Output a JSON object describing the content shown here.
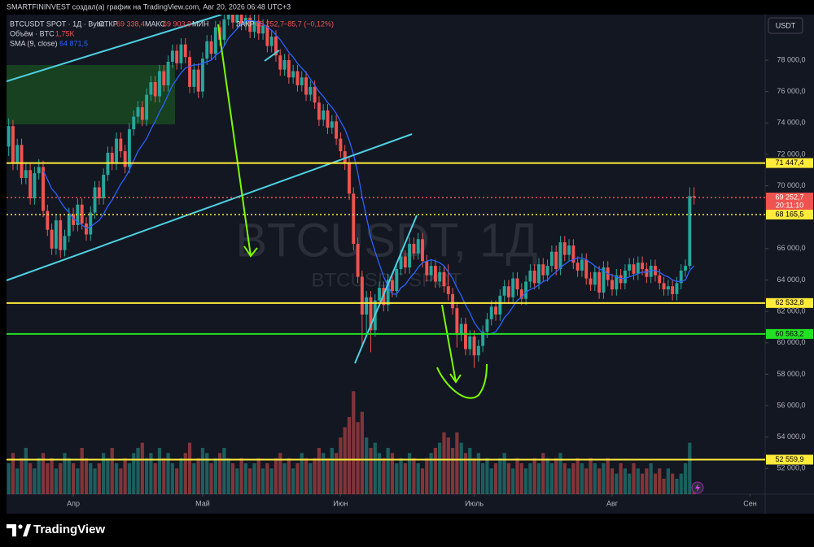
{
  "header": {
    "author_line": "SMARTFININVEST создал(а) график на TradingView.com, Авг 20, 2026 06:48 UTC+3",
    "currency_button": "USDT"
  },
  "chart_data": {
    "type": "candlestick",
    "symbol_line": "BTCUSDT SPOT · 1Д · Bybit",
    "watermark": "BTCUSDT, 1Д",
    "watermark_sub": "BTCUSDT SPOT",
    "legend": {
      "open_name": "ОТКР",
      "open": "69 338,4",
      "high_name": "МАКС",
      "high": "69 903,9",
      "low_name": "МИН",
      "close_name": "ЗАКР",
      "close": "69 252,7",
      "change": "−85,7 (−0,12%)"
    },
    "up_color": "#26a69a",
    "down_color": "#ef5350",
    "ohlc": [
      [
        72500,
        74300,
        71900,
        73800
      ],
      [
        73800,
        74200,
        71000,
        71400
      ],
      [
        71400,
        73000,
        71000,
        72600
      ],
      [
        72600,
        73000,
        70100,
        70500
      ],
      [
        70500,
        71500,
        70100,
        71000
      ],
      [
        71000,
        71400,
        68800,
        69200
      ],
      [
        69200,
        71200,
        68800,
        70800
      ],
      [
        70800,
        71700,
        70400,
        71200
      ],
      [
        71200,
        71600,
        68000,
        68400
      ],
      [
        68400,
        68800,
        66800,
        67200
      ],
      [
        67200,
        67600,
        65600,
        66000
      ],
      [
        66000,
        68200,
        65600,
        67800
      ],
      [
        67800,
        68200,
        65400,
        65900
      ],
      [
        65900,
        67200,
        65500,
        66800
      ],
      [
        66800,
        68600,
        66400,
        68200
      ],
      [
        68200,
        68600,
        67100,
        67500
      ],
      [
        67500,
        69200,
        67100,
        68800
      ],
      [
        68800,
        69200,
        67200,
        67600
      ],
      [
        67600,
        68000,
        66500,
        66900
      ],
      [
        66900,
        68700,
        66500,
        68300
      ],
      [
        68300,
        70300,
        67900,
        69900
      ],
      [
        69900,
        70300,
        68800,
        69200
      ],
      [
        69200,
        71100,
        68800,
        70700
      ],
      [
        70700,
        72500,
        70300,
        72100
      ],
      [
        72100,
        72500,
        71000,
        71400
      ],
      [
        71400,
        73400,
        71000,
        73000
      ],
      [
        73000,
        73400,
        71800,
        72200
      ],
      [
        72200,
        72600,
        70800,
        71200
      ],
      [
        71200,
        74000,
        70800,
        73600
      ],
      [
        73600,
        74800,
        73200,
        74400
      ],
      [
        74400,
        75400,
        74000,
        75000
      ],
      [
        75000,
        75400,
        73800,
        74200
      ],
      [
        74200,
        76200,
        73800,
        75800
      ],
      [
        75800,
        77000,
        75400,
        76600
      ],
      [
        76600,
        77000,
        75300,
        75700
      ],
      [
        75700,
        77700,
        75300,
        77300
      ],
      [
        77300,
        77700,
        76000,
        76400
      ],
      [
        76400,
        78300,
        76000,
        77900
      ],
      [
        77900,
        79000,
        77500,
        78600
      ],
      [
        78600,
        79000,
        77400,
        77800
      ],
      [
        77800,
        79400,
        77400,
        79000
      ],
      [
        79000,
        79400,
        77800,
        78200
      ],
      [
        78200,
        78600,
        75900,
        76300
      ],
      [
        76300,
        77800,
        75900,
        77400
      ],
      [
        77400,
        77800,
        75600,
        76000
      ],
      [
        76000,
        78500,
        75600,
        78100
      ],
      [
        78100,
        79600,
        77700,
        79200
      ],
      [
        79200,
        79600,
        78000,
        78400
      ],
      [
        78400,
        80500,
        78000,
        80100
      ],
      [
        80100,
        80500,
        78900,
        79300
      ],
      [
        79300,
        81000,
        78900,
        80600
      ],
      [
        80600,
        81600,
        80200,
        81200
      ],
      [
        81200,
        81600,
        80000,
        80400
      ],
      [
        80400,
        81400,
        80000,
        81000
      ],
      [
        81000,
        81400,
        79900,
        80300
      ],
      [
        80300,
        81100,
        79900,
        80700
      ],
      [
        80700,
        81100,
        79400,
        79800
      ],
      [
        79800,
        80900,
        79400,
        80500
      ],
      [
        80500,
        80900,
        79300,
        79700
      ],
      [
        79700,
        80600,
        79300,
        80200
      ],
      [
        80200,
        80600,
        78500,
        78900
      ],
      [
        78900,
        79900,
        78500,
        79500
      ],
      [
        79500,
        79900,
        77900,
        78300
      ],
      [
        78300,
        78700,
        77000,
        77400
      ],
      [
        77400,
        78400,
        77000,
        78000
      ],
      [
        78000,
        78400,
        76500,
        76900
      ],
      [
        76900,
        77700,
        76500,
        77300
      ],
      [
        77300,
        77700,
        76000,
        76400
      ],
      [
        76400,
        77300,
        76000,
        76900
      ],
      [
        76900,
        77300,
        75400,
        75800
      ],
      [
        75800,
        76700,
        75400,
        76300
      ],
      [
        76300,
        76700,
        74900,
        75300
      ],
      [
        75300,
        75700,
        73800,
        74200
      ],
      [
        74200,
        75200,
        73800,
        74800
      ],
      [
        74800,
        75200,
        73300,
        73700
      ],
      [
        73700,
        74500,
        73300,
        74100
      ],
      [
        74100,
        74500,
        72600,
        73000
      ],
      [
        73000,
        73400,
        71800,
        72200
      ],
      [
        72200,
        72600,
        71000,
        71400
      ],
      [
        71400,
        71800,
        69100,
        69500
      ],
      [
        69500,
        69900,
        65900,
        66300
      ],
      [
        66300,
        66700,
        63800,
        64200
      ],
      [
        64200,
        64600,
        59800,
        61800
      ],
      [
        61800,
        63300,
        60400,
        62900
      ],
      [
        62900,
        63300,
        59400,
        60800
      ],
      [
        60800,
        63100,
        60400,
        62700
      ],
      [
        62700,
        63900,
        62300,
        63500
      ],
      [
        63500,
        63900,
        62000,
        62400
      ],
      [
        62400,
        64400,
        62000,
        64000
      ],
      [
        64000,
        64400,
        62900,
        63300
      ],
      [
        63300,
        65100,
        62900,
        64700
      ],
      [
        64700,
        65900,
        64300,
        65500
      ],
      [
        65500,
        65900,
        64400,
        64800
      ],
      [
        64800,
        66700,
        64400,
        66300
      ],
      [
        66300,
        66700,
        65300,
        65700
      ],
      [
        65700,
        67000,
        65300,
        66600
      ],
      [
        66600,
        67000,
        64800,
        65200
      ],
      [
        65200,
        65600,
        63900,
        64300
      ],
      [
        64300,
        65300,
        63900,
        64900
      ],
      [
        64900,
        65300,
        63500,
        63900
      ],
      [
        63900,
        64900,
        63500,
        64500
      ],
      [
        64500,
        64900,
        63200,
        63600
      ],
      [
        63600,
        65000,
        62700,
        63100
      ],
      [
        63100,
        63500,
        61800,
        62200
      ],
      [
        62200,
        62600,
        59700,
        60500
      ],
      [
        60500,
        61600,
        60100,
        61200
      ],
      [
        61200,
        61600,
        59200,
        59600
      ],
      [
        59600,
        60800,
        59200,
        60400
      ],
      [
        60400,
        60800,
        58400,
        59200
      ],
      [
        59200,
        60200,
        58800,
        59800
      ],
      [
        59800,
        61100,
        59400,
        60700
      ],
      [
        60700,
        61900,
        60300,
        61500
      ],
      [
        61500,
        62700,
        61100,
        62300
      ],
      [
        62300,
        62700,
        61400,
        61800
      ],
      [
        61800,
        63400,
        61400,
        63000
      ],
      [
        63000,
        64000,
        62600,
        63600
      ],
      [
        63600,
        64000,
        62500,
        62900
      ],
      [
        62900,
        64500,
        62500,
        64100
      ],
      [
        64100,
        64500,
        63000,
        63400
      ],
      [
        63400,
        63800,
        62400,
        62800
      ],
      [
        62800,
        64300,
        62400,
        63900
      ],
      [
        63900,
        65000,
        63500,
        64600
      ],
      [
        64600,
        65000,
        63400,
        63800
      ],
      [
        63800,
        65400,
        63400,
        65000
      ],
      [
        65000,
        65400,
        63900,
        64300
      ],
      [
        64300,
        65300,
        63900,
        64900
      ],
      [
        64900,
        66200,
        64500,
        65800
      ],
      [
        65800,
        66200,
        64300,
        64700
      ],
      [
        64700,
        66800,
        64300,
        66400
      ],
      [
        66400,
        66800,
        65200,
        65600
      ],
      [
        65600,
        66600,
        65200,
        66200
      ],
      [
        66200,
        66600,
        64700,
        65100
      ],
      [
        65100,
        65500,
        64200,
        64600
      ],
      [
        64600,
        65700,
        64200,
        65300
      ],
      [
        65300,
        65700,
        63700,
        64100
      ],
      [
        64100,
        64500,
        63300,
        63700
      ],
      [
        63700,
        64900,
        63300,
        64500
      ],
      [
        64500,
        64900,
        62800,
        63200
      ],
      [
        63200,
        65200,
        62800,
        64800
      ],
      [
        64800,
        65200,
        63600,
        64000
      ],
      [
        64000,
        64400,
        63000,
        63400
      ],
      [
        63400,
        64700,
        63000,
        64300
      ],
      [
        64300,
        64700,
        63400,
        63800
      ],
      [
        63800,
        65000,
        63400,
        64600
      ],
      [
        64600,
        65400,
        64200,
        65000
      ],
      [
        65000,
        65400,
        64000,
        64400
      ],
      [
        64400,
        65500,
        64000,
        65100
      ],
      [
        65100,
        65500,
        64300,
        64700
      ],
      [
        64700,
        65100,
        63800,
        64200
      ],
      [
        64200,
        65300,
        63800,
        64900
      ],
      [
        64900,
        65300,
        63900,
        64300
      ],
      [
        64300,
        64700,
        63400,
        63800
      ],
      [
        63800,
        64200,
        63000,
        63400
      ],
      [
        63400,
        64000,
        63000,
        63600
      ],
      [
        63600,
        64000,
        62700,
        63100
      ],
      [
        63100,
        64200,
        62700,
        63800
      ],
      [
        63800,
        65000,
        63400,
        64600
      ],
      [
        64600,
        65300,
        64200,
        64900
      ],
      [
        64900,
        69900,
        64700,
        69338.4
      ],
      [
        69338.4,
        69903.9,
        68800,
        69252.7
      ]
    ],
    "volume": {
      "name": "Объём · BTC",
      "last": "1,75K",
      "vlim": [
        0,
        30
      ],
      "values": [
        6,
        8,
        5,
        7,
        9,
        6,
        5,
        7,
        8,
        6,
        7,
        5,
        6,
        8,
        7,
        6,
        5,
        9,
        7,
        6,
        5,
        6,
        8,
        7,
        9,
        6,
        5,
        7,
        6,
        8,
        9,
        10,
        7,
        8,
        6,
        9,
        7,
        8,
        6,
        5,
        7,
        8,
        10,
        6,
        7,
        9,
        8,
        6,
        7,
        8,
        9,
        7,
        6,
        5,
        7,
        6,
        5,
        6,
        7,
        5,
        6,
        5,
        7,
        8,
        6,
        7,
        5,
        6,
        8,
        7,
        6,
        7,
        9,
        8,
        7,
        9,
        8,
        11,
        13,
        15,
        20,
        14,
        16,
        11,
        9,
        10,
        8,
        7,
        9,
        8,
        6,
        7,
        6,
        8,
        7,
        6,
        5,
        7,
        8,
        9,
        10,
        12,
        11,
        9,
        12,
        10,
        8,
        9,
        7,
        8,
        6,
        7,
        5,
        6,
        7,
        8,
        6,
        5,
        7,
        6,
        5,
        6,
        7,
        6,
        8,
        7,
        6,
        7,
        8,
        6,
        5,
        6,
        7,
        6,
        5,
        7,
        6,
        5,
        6,
        7,
        5,
        4,
        6,
        5,
        4,
        6,
        5,
        4,
        5,
        6,
        4,
        5,
        3,
        5,
        4,
        3,
        4,
        6,
        10,
        2
      ]
    },
    "sma": {
      "name": "SMA (9, close)",
      "last": "64 871,5",
      "color": "#2962ff",
      "values": [
        null,
        null,
        null,
        null,
        null,
        null,
        null,
        null,
        70990,
        70400,
        69800,
        69500,
        69000,
        68600,
        68300,
        67900,
        67700,
        67500,
        67300,
        67400,
        67600,
        67800,
        68200,
        68700,
        69100,
        69600,
        70100,
        70500,
        71000,
        71600,
        72200,
        72600,
        73000,
        73600,
        74100,
        74700,
        75200,
        75800,
        76400,
        76800,
        77200,
        77500,
        77600,
        77700,
        77700,
        77800,
        77900,
        78000,
        78300,
        78500,
        78900,
        79400,
        79700,
        80000,
        80300,
        80500,
        80500,
        80500,
        80400,
        80300,
        80100,
        79900,
        79600,
        79300,
        78900,
        78500,
        78200,
        77800,
        77500,
        77200,
        76800,
        76400,
        76000,
        75700,
        75300,
        75000,
        74600,
        74100,
        73600,
        72900,
        72000,
        70800,
        69300,
        68000,
        66700,
        65800,
        65000,
        64200,
        63600,
        63100,
        63100,
        63500,
        63700,
        64100,
        64400,
        64800,
        65100,
        65200,
        65300,
        65200,
        65100,
        64900,
        64500,
        64100,
        63500,
        63000,
        62400,
        61900,
        61300,
        60900,
        60600,
        60500,
        60600,
        60700,
        61100,
        61600,
        61900,
        62300,
        62700,
        62900,
        63200,
        63400,
        63500,
        63700,
        63900,
        64000,
        64300,
        64500,
        64800,
        65000,
        65200,
        65300,
        65400,
        65400,
        65300,
        65100,
        64900,
        64700,
        64600,
        64400,
        64300,
        64200,
        64100,
        64100,
        64200,
        64300,
        64400,
        64500,
        64500,
        64600,
        64600,
        64500,
        64300,
        64200,
        64000,
        63900,
        63900,
        64000,
        64600,
        64900
      ]
    },
    "levels": [
      {
        "value": 71447.4,
        "label": "71 447,4",
        "color": "#ffeb3b",
        "style": "solid"
      },
      {
        "value": 69252.7,
        "label": "69 252,7",
        "color": "#ef5350",
        "style": "dotted",
        "countdown": "20:11:10"
      },
      {
        "value": 68165.5,
        "label": "68 165,5",
        "color": "#ffeb3b",
        "style": "dotted"
      },
      {
        "value": 62532.8,
        "label": "62 532,8",
        "color": "#ffeb3b",
        "style": "solid"
      },
      {
        "value": 60563.2,
        "label": "60 563,2",
        "color": "#22e022",
        "style": "solid"
      },
      {
        "value": 52559.9,
        "label": "52 559,9",
        "color": "#ffeb3b",
        "style": "solid"
      }
    ],
    "ylim": [
      50360,
      80900
    ],
    "yticks": [
      {
        "value": 52000,
        "label": "52 000,0"
      },
      {
        "value": 54000,
        "label": "54 000,0"
      },
      {
        "value": 56000,
        "label": "56 000,0"
      },
      {
        "value": 58000,
        "label": "58 000,0"
      },
      {
        "value": 60000,
        "label": "60 000,0"
      },
      {
        "value": 62000,
        "label": "62 000,0"
      },
      {
        "value": 64000,
        "label": "64 000,0"
      },
      {
        "value": 66000,
        "label": "66 000,0"
      },
      {
        "value": 70000,
        "label": "70 000,0"
      },
      {
        "value": 72000,
        "label": "72 000,0"
      },
      {
        "value": 74000,
        "label": "74 000,0"
      },
      {
        "value": 76000,
        "label": "76 000,0"
      },
      {
        "value": 78000,
        "label": "78 000,0"
      }
    ],
    "xlim": [
      -0.5,
      175.5
    ],
    "xticks": [
      {
        "value": 15,
        "label": "Апр"
      },
      {
        "value": 45,
        "label": "Май"
      },
      {
        "value": 77,
        "label": "Июн"
      },
      {
        "value": 108,
        "label": "Июль"
      },
      {
        "value": 140,
        "label": "Авг"
      },
      {
        "value": 172,
        "label": "Сен"
      }
    ]
  },
  "footer": {
    "brand": "TradingView"
  }
}
